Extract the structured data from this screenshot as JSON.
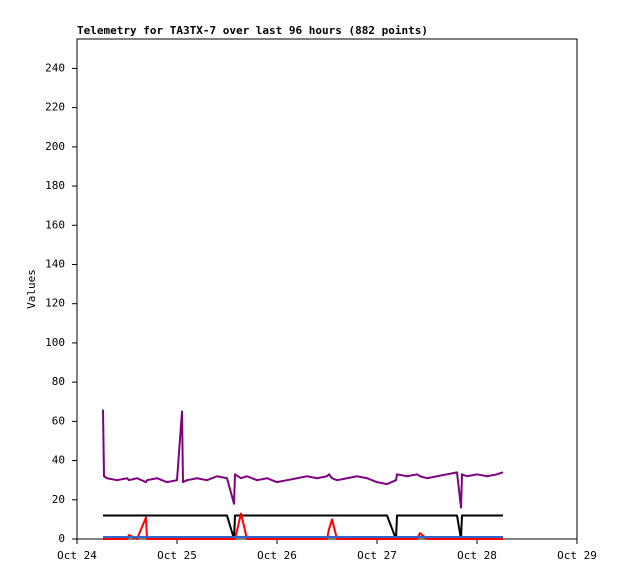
{
  "chart_data": {
    "type": "line",
    "title": "Telemetry for TA3TX-7 over last 96 hours (882 points)",
    "y_label": "Values",
    "x": [
      0.26,
      0.27,
      0.3,
      0.4,
      0.5,
      0.52,
      0.6,
      0.69,
      0.7,
      0.8,
      0.9,
      1.0,
      1.05,
      1.06,
      1.1,
      1.2,
      1.3,
      1.4,
      1.5,
      1.57,
      1.58,
      1.64,
      1.7,
      1.8,
      1.9,
      2.0,
      2.1,
      2.2,
      2.3,
      2.4,
      2.5,
      2.52,
      2.55,
      2.6,
      2.7,
      2.8,
      2.9,
      3.0,
      3.1,
      3.19,
      3.2,
      3.3,
      3.4,
      3.43,
      3.5,
      3.6,
      3.7,
      3.8,
      3.84,
      3.85,
      3.9,
      4.0,
      4.1,
      4.2,
      4.26
    ],
    "series": [
      {
        "color": "#000000",
        "values": [
          12,
          12,
          12,
          12,
          12,
          12,
          12,
          12,
          12,
          12,
          12,
          12,
          12,
          12,
          12,
          12,
          12,
          12,
          12,
          0,
          12,
          12,
          12,
          12,
          12,
          12,
          12,
          12,
          12,
          12,
          12,
          12,
          12,
          12,
          12,
          12,
          12,
          12,
          12,
          0,
          12,
          12,
          12,
          12,
          12,
          12,
          12,
          12,
          0,
          12,
          12,
          12,
          12,
          12,
          12
        ]
      },
      {
        "color": "#800080",
        "values": [
          66,
          32,
          31,
          30,
          31,
          30,
          31,
          29,
          30,
          31,
          29,
          30,
          65,
          29,
          30,
          31,
          30,
          32,
          31,
          18,
          33,
          31,
          32,
          30,
          31,
          29,
          30,
          31,
          32,
          31,
          32,
          33,
          31,
          30,
          31,
          32,
          31,
          29,
          28,
          30,
          33,
          32,
          33,
          32,
          31,
          32,
          33,
          34,
          16,
          33,
          32,
          33,
          32,
          33,
          34
        ]
      },
      {
        "color": "#ff0000",
        "values": [
          0,
          0,
          0,
          0,
          0,
          2,
          0,
          11,
          0,
          0,
          0,
          0,
          0,
          0,
          0,
          0,
          0,
          0,
          0,
          0,
          0,
          13,
          0,
          0,
          0,
          0,
          0,
          0,
          0,
          0,
          0,
          5,
          10,
          0,
          0,
          0,
          0,
          0,
          0,
          0,
          0,
          0,
          0,
          3,
          0,
          0,
          0,
          0,
          0,
          0,
          0,
          0,
          0,
          0,
          0
        ]
      },
      {
        "color": "#3366cc",
        "values": [
          1,
          1,
          1,
          1,
          1,
          1,
          1,
          1,
          1,
          1,
          1,
          1,
          1,
          1,
          1,
          1,
          1,
          1,
          1,
          1,
          1,
          1,
          1,
          1,
          1,
          1,
          1,
          1,
          1,
          1,
          1,
          1,
          1,
          1,
          1,
          1,
          1,
          1,
          1,
          1,
          1,
          1,
          1,
          1,
          1,
          1,
          1,
          1,
          1,
          1,
          1,
          1,
          1,
          1,
          1
        ]
      }
    ],
    "xlim": [
      0,
      5
    ],
    "xticks": [
      {
        "value": 0,
        "label": "Oct 24"
      },
      {
        "value": 1,
        "label": "Oct 25"
      },
      {
        "value": 2,
        "label": "Oct 26"
      },
      {
        "value": 3,
        "label": "Oct 27"
      },
      {
        "value": 4,
        "label": "Oct 28"
      },
      {
        "value": 5,
        "label": "Oct 29"
      }
    ],
    "ylim": [
      0,
      255
    ],
    "yticks": [
      0,
      20,
      40,
      60,
      80,
      100,
      120,
      140,
      160,
      180,
      200,
      220,
      240
    ]
  }
}
